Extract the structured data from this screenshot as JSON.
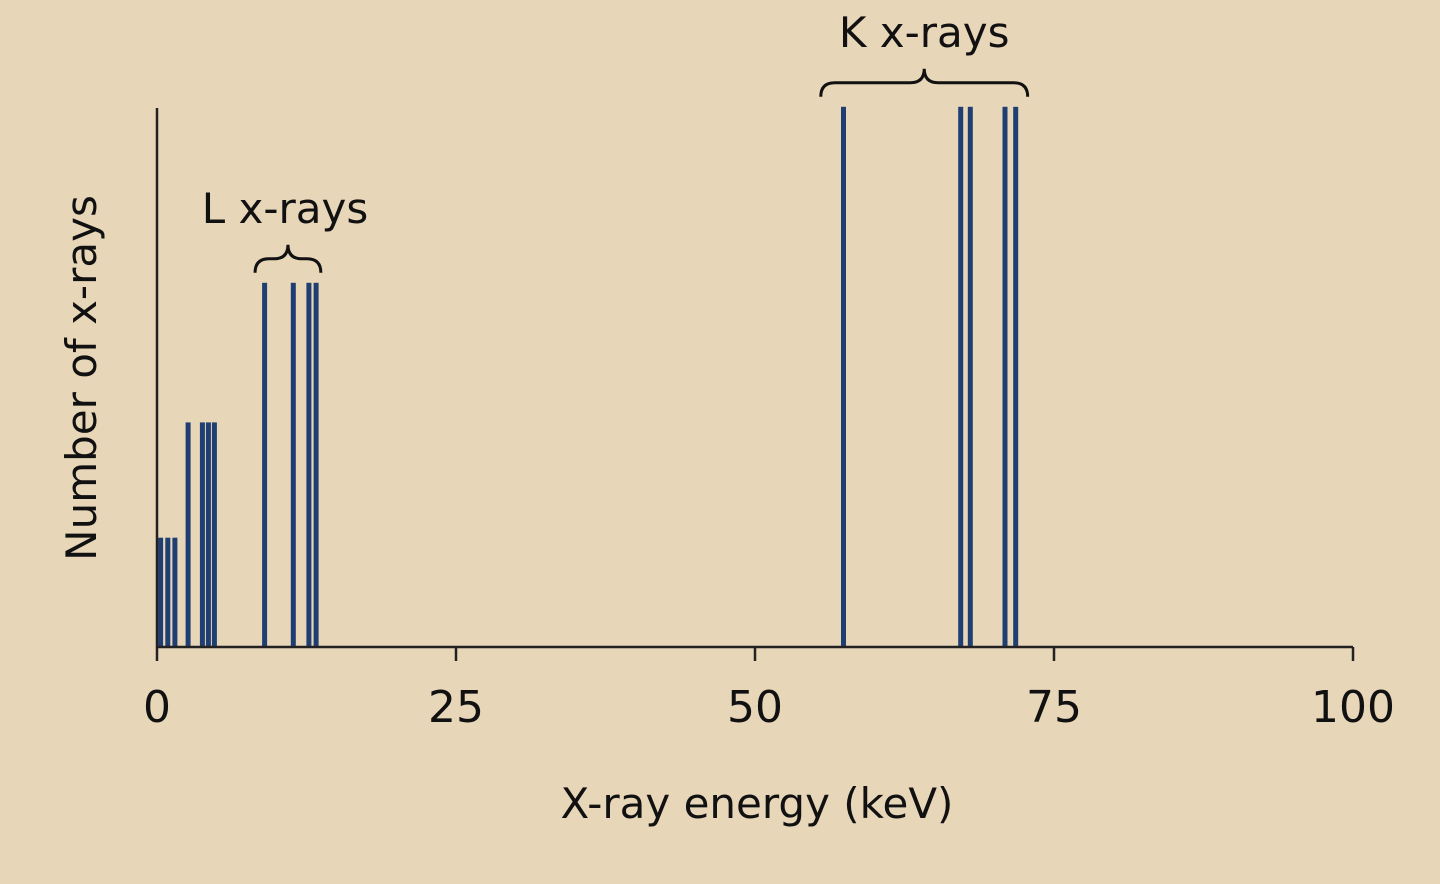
{
  "chart_data": {
    "type": "bar",
    "title": "",
    "xlabel": "X-ray energy (keV)",
    "ylabel": "Number of x-rays",
    "xlim": [
      0,
      100
    ],
    "ylim": [
      0,
      1
    ],
    "xticks": [
      0,
      25,
      50,
      75,
      100
    ],
    "xtick_labels": [
      "0",
      "25",
      "50",
      "75",
      "100"
    ],
    "grid": false,
    "bar_color": "#1f3f73",
    "axis_color": "#222222",
    "background": "#e8d6b9",
    "series": [
      {
        "name": "",
        "points": [
          {
            "x": 0.3,
            "y": 0.18
          },
          {
            "x": 0.9,
            "y": 0.18
          },
          {
            "x": 1.5,
            "y": 0.18
          },
          {
            "x": 2.6,
            "y": 0.37
          },
          {
            "x": 3.8,
            "y": 0.37
          },
          {
            "x": 4.3,
            "y": 0.37
          },
          {
            "x": 4.8,
            "y": 0.37
          },
          {
            "x": 9.0,
            "y": 0.6
          },
          {
            "x": 11.4,
            "y": 0.6
          },
          {
            "x": 12.7,
            "y": 0.6
          },
          {
            "x": 13.3,
            "y": 0.6
          },
          {
            "x": 57.4,
            "y": 0.89
          },
          {
            "x": 67.2,
            "y": 0.89
          },
          {
            "x": 68.0,
            "y": 0.89
          },
          {
            "x": 70.9,
            "y": 0.89
          },
          {
            "x": 71.8,
            "y": 0.89
          }
        ]
      }
    ],
    "annotations": [
      {
        "text": "L x-rays",
        "x_range": [
          8.2,
          13.7
        ]
      },
      {
        "text": "K x-rays",
        "x_range": [
          55.5,
          72.8
        ]
      }
    ]
  }
}
